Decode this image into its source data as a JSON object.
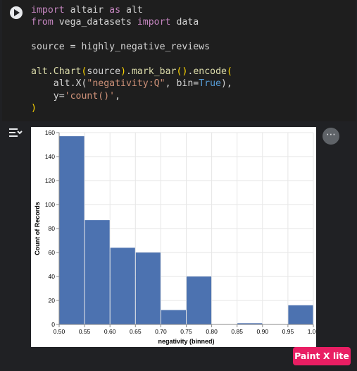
{
  "cell": {
    "code_lines": [
      [
        {
          "t": "import",
          "c": "kw"
        },
        {
          "t": " altair "
        },
        {
          "t": "as",
          "c": "kw"
        },
        {
          "t": " alt"
        }
      ],
      [
        {
          "t": "from",
          "c": "kw"
        },
        {
          "t": " vega_datasets "
        },
        {
          "t": "import",
          "c": "kw"
        },
        {
          "t": " data"
        }
      ],
      [
        {
          "t": ""
        }
      ],
      [
        {
          "t": "source = highly_negative_reviews"
        }
      ],
      [
        {
          "t": ""
        }
      ],
      [
        {
          "t": "alt.Chart",
          "c": "fn"
        },
        {
          "t": "(",
          "c": "br"
        },
        {
          "t": "source"
        },
        {
          "t": ")",
          "c": "br"
        },
        {
          "t": "."
        },
        {
          "t": "mark_bar",
          "c": "fn"
        },
        {
          "t": "()",
          "c": "br"
        },
        {
          "t": "."
        },
        {
          "t": "encode",
          "c": "fn"
        },
        {
          "t": "(",
          "c": "br"
        }
      ],
      [
        {
          "t": "    alt.X("
        },
        {
          "t": "\"negativity:Q\"",
          "c": "str"
        },
        {
          "t": ", bin="
        },
        {
          "t": "True",
          "c": "bool"
        },
        {
          "t": "),"
        }
      ],
      [
        {
          "t": "    y="
        },
        {
          "t": "'count()'",
          "c": "str"
        },
        {
          "t": ","
        }
      ],
      [
        {
          "t": ")",
          "c": "br"
        }
      ]
    ]
  },
  "output": {
    "toggle_icon": "output-toggle-icon",
    "more_label": "⋯"
  },
  "chart_data": {
    "type": "bar",
    "xlabel": "negativity (binned)",
    "ylabel": "Count of Records",
    "bins": [
      {
        "x0": 0.5,
        "x1": 0.55,
        "value": 157
      },
      {
        "x0": 0.55,
        "x1": 0.6,
        "value": 87
      },
      {
        "x0": 0.6,
        "x1": 0.65,
        "value": 64
      },
      {
        "x0": 0.65,
        "x1": 0.7,
        "value": 60
      },
      {
        "x0": 0.7,
        "x1": 0.75,
        "value": 12
      },
      {
        "x0": 0.75,
        "x1": 0.8,
        "value": 40
      },
      {
        "x0": 0.8,
        "x1": 0.85,
        "value": 0
      },
      {
        "x0": 0.85,
        "x1": 0.9,
        "value": 1
      },
      {
        "x0": 0.9,
        "x1": 0.95,
        "value": 0
      },
      {
        "x0": 0.95,
        "x1": 1.0,
        "value": 16
      }
    ],
    "xticks": [
      "0.50",
      "0.55",
      "0.60",
      "0.65",
      "0.70",
      "0.75",
      "0.80",
      "0.85",
      "0.90",
      "0.95",
      "1.00"
    ],
    "yticks": [
      0,
      20,
      40,
      60,
      80,
      100,
      120,
      140,
      160
    ],
    "ylim": [
      0,
      160
    ],
    "xlim": [
      0.5,
      1.0
    ],
    "grid": true,
    "bar_color": "#4c72b0"
  },
  "watermark": {
    "text": "Paint X lite"
  }
}
